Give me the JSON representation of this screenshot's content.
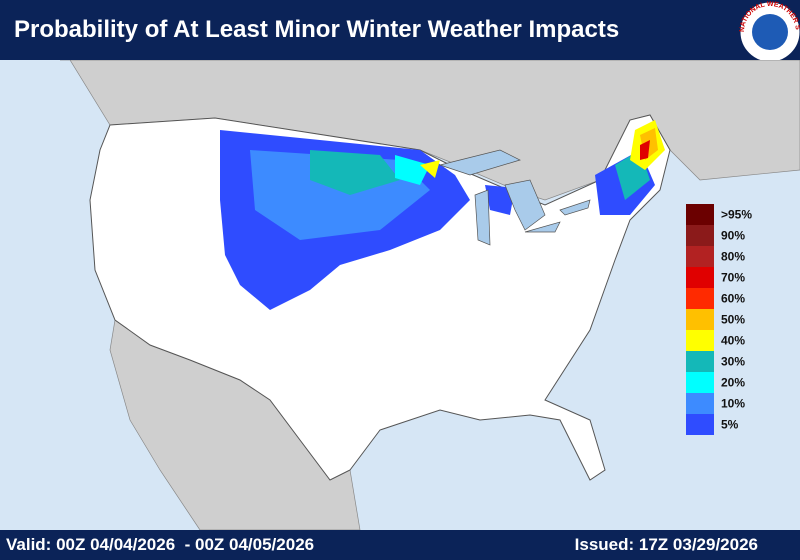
{
  "header": {
    "title": "Probability of At Least Minor Winter Weather Impacts",
    "logo_text": "NATIONAL WEATHER SERVICE"
  },
  "legend": {
    "items": [
      {
        "label": ">95%",
        "color": "#6b0000"
      },
      {
        "label": "90%",
        "color": "#8b1a1a"
      },
      {
        "label": "80%",
        "color": "#b22222"
      },
      {
        "label": "70%",
        "color": "#e00000"
      },
      {
        "label": "60%",
        "color": "#ff2a00"
      },
      {
        "label": "50%",
        "color": "#ffc000"
      },
      {
        "label": "40%",
        "color": "#ffff00"
      },
      {
        "label": "30%",
        "color": "#14b8b8"
      },
      {
        "label": "20%",
        "color": "#00ffff"
      },
      {
        "label": "10%",
        "color": "#3d8bff"
      },
      {
        "label": "5%",
        "color": "#2f4cff"
      }
    ]
  },
  "footer": {
    "valid": "Valid: 00Z 04/04/2026  - 00Z 04/05/2026",
    "issued": "Issued: 17Z 03/29/2026"
  }
}
